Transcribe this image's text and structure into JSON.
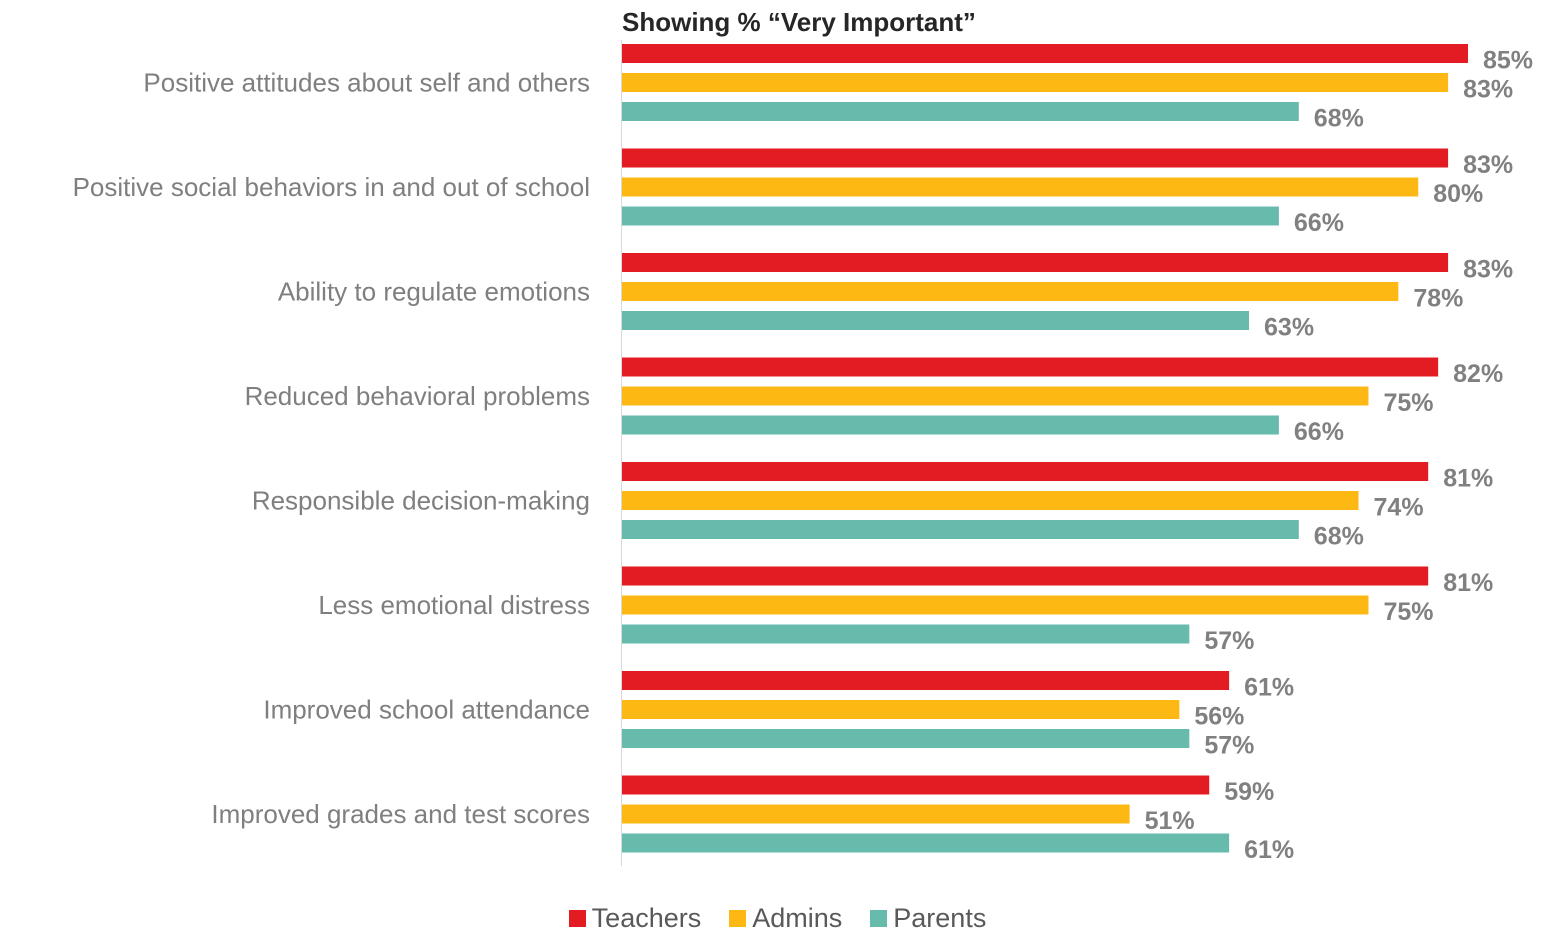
{
  "chart_data": {
    "type": "bar",
    "orientation": "horizontal",
    "title": "Showing % “Very Important”",
    "categories": [
      "Positive attitudes about self and others",
      "Positive social behaviors in and out of school",
      "Ability to regulate emotions",
      "Reduced behavioral problems",
      "Responsible decision-making",
      "Less emotional distress",
      "Improved school attendance",
      "Improved grades and test scores"
    ],
    "series": [
      {
        "name": "Teachers",
        "color": "#e31b23",
        "values": [
          85,
          83,
          83,
          82,
          81,
          81,
          61,
          59
        ]
      },
      {
        "name": "Admins",
        "color": "#fdb813",
        "values": [
          83,
          80,
          78,
          75,
          74,
          75,
          56,
          51
        ]
      },
      {
        "name": "Parents",
        "color": "#66bbad",
        "values": [
          68,
          66,
          63,
          66,
          68,
          57,
          57,
          61
        ]
      }
    ],
    "value_suffix": "%",
    "xlim": [
      0,
      85
    ],
    "grid": false,
    "legend_position": "bottom"
  }
}
